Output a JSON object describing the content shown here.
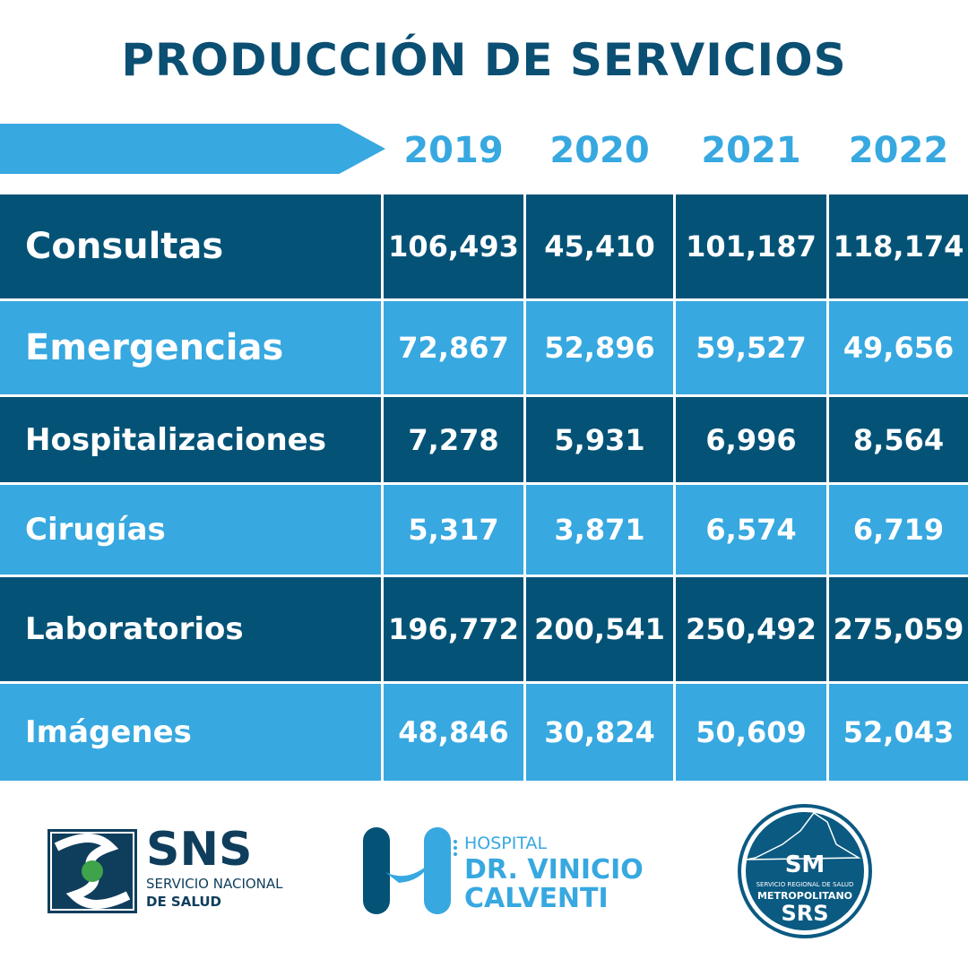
{
  "title": "PRODUCCIÓN DE SERVICIOS",
  "colors": {
    "dark": "#045377",
    "light": "#37a8e0",
    "title": "#0b4f73"
  },
  "chart_data": {
    "type": "table",
    "title": "PRODUCCIÓN DE SERVICIOS",
    "columns": [
      "2019",
      "2020",
      "2021",
      "2022"
    ],
    "rows": [
      {
        "label": "Consultas",
        "values": [
          "106,493",
          "45,410",
          "101,187",
          "118,174"
        ]
      },
      {
        "label": "Emergencias",
        "values": [
          "72,867",
          "52,896",
          "59,527",
          "49,656"
        ]
      },
      {
        "label": "Hospitalizaciones",
        "values": [
          "7,278",
          "5,931",
          "6,996",
          "8,564"
        ]
      },
      {
        "label": "Cirugías",
        "values": [
          "5,317",
          "3,871",
          "6,574",
          "6,719"
        ]
      },
      {
        "label": "Laboratorios",
        "values": [
          "196,772",
          "200,541",
          "250,492",
          "275,059"
        ]
      },
      {
        "label": "Imágenes",
        "values": [
          "48,846",
          "30,824",
          "50,609",
          "52,043"
        ]
      }
    ]
  },
  "logos": {
    "sns": {
      "name": "SNS",
      "line1": "SERVICIO NACIONAL",
      "line2": "DE SALUD"
    },
    "hospital": {
      "line1": "HOSPITAL",
      "line2": "DR. VINICIO",
      "line3": "CALVENTI"
    },
    "srs": {
      "mark": "SM",
      "line1": "SERVICIO REGIONAL DE SALUD",
      "line2": "METROPOLITANO",
      "line3": "SRS"
    }
  }
}
